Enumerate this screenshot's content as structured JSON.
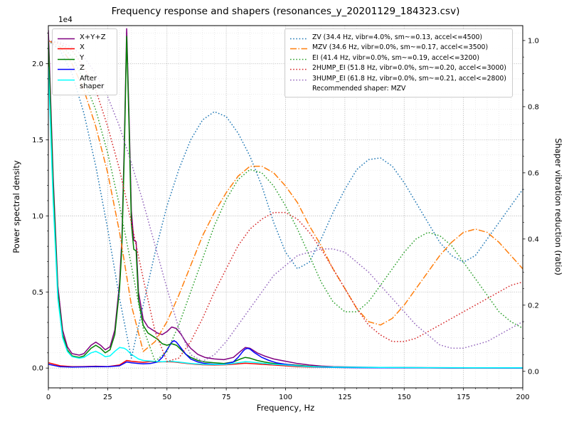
{
  "chart_data": {
    "type": "line",
    "title": "Frequency response and shapers (resonances_y_20201129_184323.csv)",
    "xlabel": "Frequency, Hz",
    "ylabel_left": "Power spectral density",
    "ylabel_right": "Shaper vibration reduction (ratio)",
    "offset_text": "1e4",
    "xlim": [
      0,
      200
    ],
    "ylim_left": [
      -1300,
      22500
    ],
    "ylim_right": [
      -0.05,
      1.045
    ],
    "grid": {
      "major": true,
      "minor": true,
      "style": "dotted"
    },
    "legend_position": {
      "psd": "upper left",
      "shapers": "upper right"
    },
    "x_ticks": {
      "values": [
        0,
        25,
        50,
        75,
        100,
        125,
        150,
        175,
        200
      ],
      "labels": [
        "0",
        "25",
        "50",
        "75",
        "100",
        "125",
        "150",
        "175",
        "200"
      ]
    },
    "y_ticks_left": {
      "values": [
        0,
        5000,
        10000,
        15000,
        20000
      ],
      "labels": [
        "0.0",
        "0.5",
        "1.0",
        "1.5",
        "2.0"
      ]
    },
    "y_ticks_right": {
      "values": [
        0,
        0.2,
        0.4,
        0.6,
        0.8,
        1.0
      ],
      "labels": [
        "0.0",
        "0.2",
        "0.4",
        "0.6",
        "0.8",
        "1.0"
      ]
    },
    "psd_series": [
      {
        "name": "X+Y+Z",
        "color": "#800080",
        "dash": "solid",
        "x": [
          0,
          2,
          4,
          6,
          8,
          10,
          13,
          15,
          18,
          20,
          22,
          24,
          26,
          28,
          30,
          31,
          32,
          33,
          34,
          35,
          36,
          37,
          38,
          40,
          42,
          44,
          46,
          48,
          50,
          52,
          54,
          56,
          58,
          60,
          63,
          66,
          70,
          74,
          78,
          81,
          83,
          85,
          88,
          91,
          95,
          100,
          105,
          110,
          115,
          120,
          130,
          140,
          160,
          180,
          200
        ],
        "y": [
          22200,
          12600,
          5400,
          2500,
          1400,
          950,
          850,
          950,
          1500,
          1700,
          1500,
          1200,
          1400,
          2500,
          5600,
          8500,
          14600,
          22300,
          16600,
          10300,
          8400,
          8300,
          5000,
          3200,
          2700,
          2500,
          2300,
          2200,
          2400,
          2700,
          2600,
          2200,
          1700,
          1300,
          900,
          700,
          600,
          550,
          700,
          1100,
          1350,
          1300,
          1000,
          800,
          600,
          450,
          300,
          200,
          130,
          90,
          60,
          45,
          30,
          20,
          14
        ]
      },
      {
        "name": "X",
        "color": "#ff0000",
        "dash": "solid",
        "x": [
          0,
          5,
          10,
          15,
          20,
          25,
          30,
          33,
          35,
          38,
          40,
          43,
          46,
          50,
          53,
          56,
          60,
          65,
          70,
          75,
          80,
          83,
          85,
          90,
          95,
          100,
          105,
          110,
          120,
          140,
          160,
          180,
          200
        ],
        "y": [
          350,
          150,
          90,
          100,
          120,
          100,
          200,
          500,
          450,
          400,
          380,
          430,
          400,
          420,
          400,
          350,
          280,
          220,
          200,
          220,
          280,
          320,
          300,
          250,
          200,
          150,
          100,
          70,
          40,
          25,
          15,
          10,
          8
        ]
      },
      {
        "name": "Y",
        "color": "#008000",
        "dash": "solid",
        "x": [
          0,
          2,
          4,
          6,
          8,
          10,
          13,
          15,
          18,
          20,
          22,
          24,
          26,
          28,
          30,
          31,
          32,
          33,
          34,
          35,
          36,
          37,
          38,
          40,
          42,
          44,
          46,
          48,
          50,
          52,
          54,
          56,
          58,
          60,
          63,
          66,
          70,
          74,
          78,
          81,
          83,
          85,
          88,
          91,
          95,
          100,
          105,
          110,
          115,
          120,
          130,
          140,
          160,
          180,
          200
        ],
        "y": [
          21500,
          12000,
          5000,
          2200,
          1200,
          800,
          700,
          800,
          1300,
          1500,
          1300,
          1000,
          1200,
          2200,
          5200,
          8000,
          14000,
          21800,
          16000,
          9500,
          7800,
          7700,
          4500,
          2800,
          2300,
          2100,
          1900,
          1600,
          1500,
          1600,
          1500,
          1200,
          900,
          700,
          500,
          400,
          350,
          300,
          400,
          600,
          700,
          650,
          500,
          400,
          300,
          250,
          180,
          120,
          80,
          60,
          40,
          30,
          20,
          15,
          10
        ]
      },
      {
        "name": "Z",
        "color": "#0000ff",
        "dash": "solid",
        "x": [
          0,
          5,
          10,
          15,
          20,
          25,
          30,
          33,
          35,
          38,
          40,
          43,
          46,
          48,
          50,
          52,
          53,
          54,
          56,
          58,
          60,
          63,
          66,
          70,
          74,
          78,
          80,
          82,
          83,
          84,
          85,
          87,
          90,
          93,
          96,
          100,
          105,
          110,
          115,
          120,
          130,
          140,
          160,
          180,
          200
        ],
        "y": [
          250,
          90,
          70,
          80,
          100,
          90,
          150,
          400,
          350,
          300,
          280,
          300,
          400,
          700,
          1200,
          1700,
          1800,
          1700,
          1300,
          900,
          600,
          400,
          300,
          250,
          250,
          400,
          700,
          1100,
          1250,
          1300,
          1250,
          1000,
          700,
          500,
          350,
          250,
          150,
          90,
          60,
          40,
          30,
          20,
          12,
          8,
          5
        ]
      },
      {
        "name": "After shaper",
        "color": "#00ffff",
        "dash": "solid",
        "x": [
          0,
          2,
          4,
          6,
          8,
          10,
          13,
          15,
          18,
          20,
          22,
          24,
          26,
          28,
          30,
          32,
          33,
          35,
          38,
          40,
          44,
          48,
          52,
          56,
          60,
          65,
          70,
          75,
          80,
          83,
          85,
          90,
          95,
          100,
          105,
          110,
          120,
          140,
          160,
          180,
          200
        ],
        "y": [
          19800,
          11000,
          4600,
          2000,
          1100,
          750,
          650,
          700,
          1000,
          1100,
          950,
          750,
          800,
          1100,
          1350,
          1300,
          1200,
          900,
          600,
          500,
          450,
          420,
          450,
          380,
          300,
          250,
          230,
          250,
          350,
          420,
          400,
          320,
          250,
          200,
          140,
          90,
          60,
          40,
          30,
          25,
          20
        ]
      }
    ],
    "shaper_series": [
      {
        "name": "ZV",
        "label": "ZV (34.4 Hz, vibr=4.0%, sm~=0.13, accel<=4500)",
        "color": "#1f77b4",
        "dash": "dotted",
        "x_start": 0,
        "x_step": 5,
        "values": [
          1.0,
          0.97,
          0.9,
          0.78,
          0.62,
          0.43,
          0.22,
          0.04,
          0.2,
          0.36,
          0.5,
          0.61,
          0.7,
          0.76,
          0.785,
          0.77,
          0.72,
          0.65,
          0.56,
          0.45,
          0.36,
          0.31,
          0.33,
          0.4,
          0.48,
          0.55,
          0.61,
          0.64,
          0.645,
          0.62,
          0.57,
          0.51,
          0.45,
          0.39,
          0.35,
          0.33,
          0.35,
          0.4,
          0.45,
          0.5,
          0.55
        ]
      },
      {
        "name": "MZV",
        "label": "MZV (34.6 Hz, vibr=0.0%, sm~=0.17, accel<=3500)",
        "color": "#ff7f0e",
        "dash": "dashdot",
        "x_start": 0,
        "x_step": 5,
        "values": [
          1.0,
          0.98,
          0.93,
          0.85,
          0.74,
          0.6,
          0.42,
          0.2,
          0.06,
          0.09,
          0.15,
          0.23,
          0.32,
          0.41,
          0.48,
          0.54,
          0.59,
          0.62,
          0.62,
          0.6,
          0.56,
          0.51,
          0.44,
          0.38,
          0.31,
          0.25,
          0.19,
          0.15,
          0.14,
          0.16,
          0.2,
          0.25,
          0.3,
          0.35,
          0.39,
          0.42,
          0.43,
          0.42,
          0.39,
          0.35,
          0.31
        ]
      },
      {
        "name": "EI",
        "label": "EI (41.4 Hz, vibr=0.0%, sm~=0.19, accel<=3200)",
        "color": "#2ca02c",
        "dash": "dotted",
        "x_start": 0,
        "x_step": 5,
        "values": [
          1.0,
          0.99,
          0.95,
          0.88,
          0.79,
          0.66,
          0.5,
          0.32,
          0.13,
          0.03,
          0.06,
          0.14,
          0.24,
          0.34,
          0.44,
          0.52,
          0.58,
          0.61,
          0.6,
          0.56,
          0.5,
          0.43,
          0.35,
          0.27,
          0.21,
          0.18,
          0.18,
          0.21,
          0.26,
          0.31,
          0.36,
          0.4,
          0.42,
          0.41,
          0.38,
          0.33,
          0.28,
          0.23,
          0.18,
          0.15,
          0.13
        ]
      },
      {
        "name": "2HUMP_EI",
        "label": "2HUMP_EI (51.8 Hz, vibr=0.0%, sm~=0.20, accel<=3000)",
        "color": "#d62728",
        "dash": "dotted",
        "x_start": 0,
        "x_step": 5,
        "values": [
          1.0,
          0.99,
          0.97,
          0.92,
          0.85,
          0.74,
          0.61,
          0.45,
          0.28,
          0.12,
          0.03,
          0.04,
          0.09,
          0.16,
          0.24,
          0.31,
          0.38,
          0.43,
          0.46,
          0.48,
          0.48,
          0.46,
          0.42,
          0.37,
          0.31,
          0.25,
          0.19,
          0.14,
          0.11,
          0.09,
          0.09,
          0.1,
          0.12,
          0.14,
          0.16,
          0.18,
          0.2,
          0.22,
          0.24,
          0.26,
          0.27
        ]
      },
      {
        "name": "3HUMP_EI",
        "label": "3HUMP_EI (61.8 Hz, vibr=0.0%, sm~=0.21, accel<=2800)",
        "color": "#9467bd",
        "dash": "dotted",
        "x_start": 0,
        "x_step": 5,
        "values": [
          1.0,
          0.995,
          0.98,
          0.95,
          0.9,
          0.83,
          0.74,
          0.63,
          0.51,
          0.38,
          0.25,
          0.13,
          0.05,
          0.03,
          0.05,
          0.09,
          0.14,
          0.19,
          0.24,
          0.29,
          0.32,
          0.35,
          0.36,
          0.37,
          0.37,
          0.36,
          0.33,
          0.3,
          0.26,
          0.22,
          0.18,
          0.14,
          0.11,
          0.08,
          0.07,
          0.07,
          0.08,
          0.09,
          0.11,
          0.13,
          0.15
        ]
      }
    ],
    "legend_note": "Recommended shaper: MZV"
  }
}
